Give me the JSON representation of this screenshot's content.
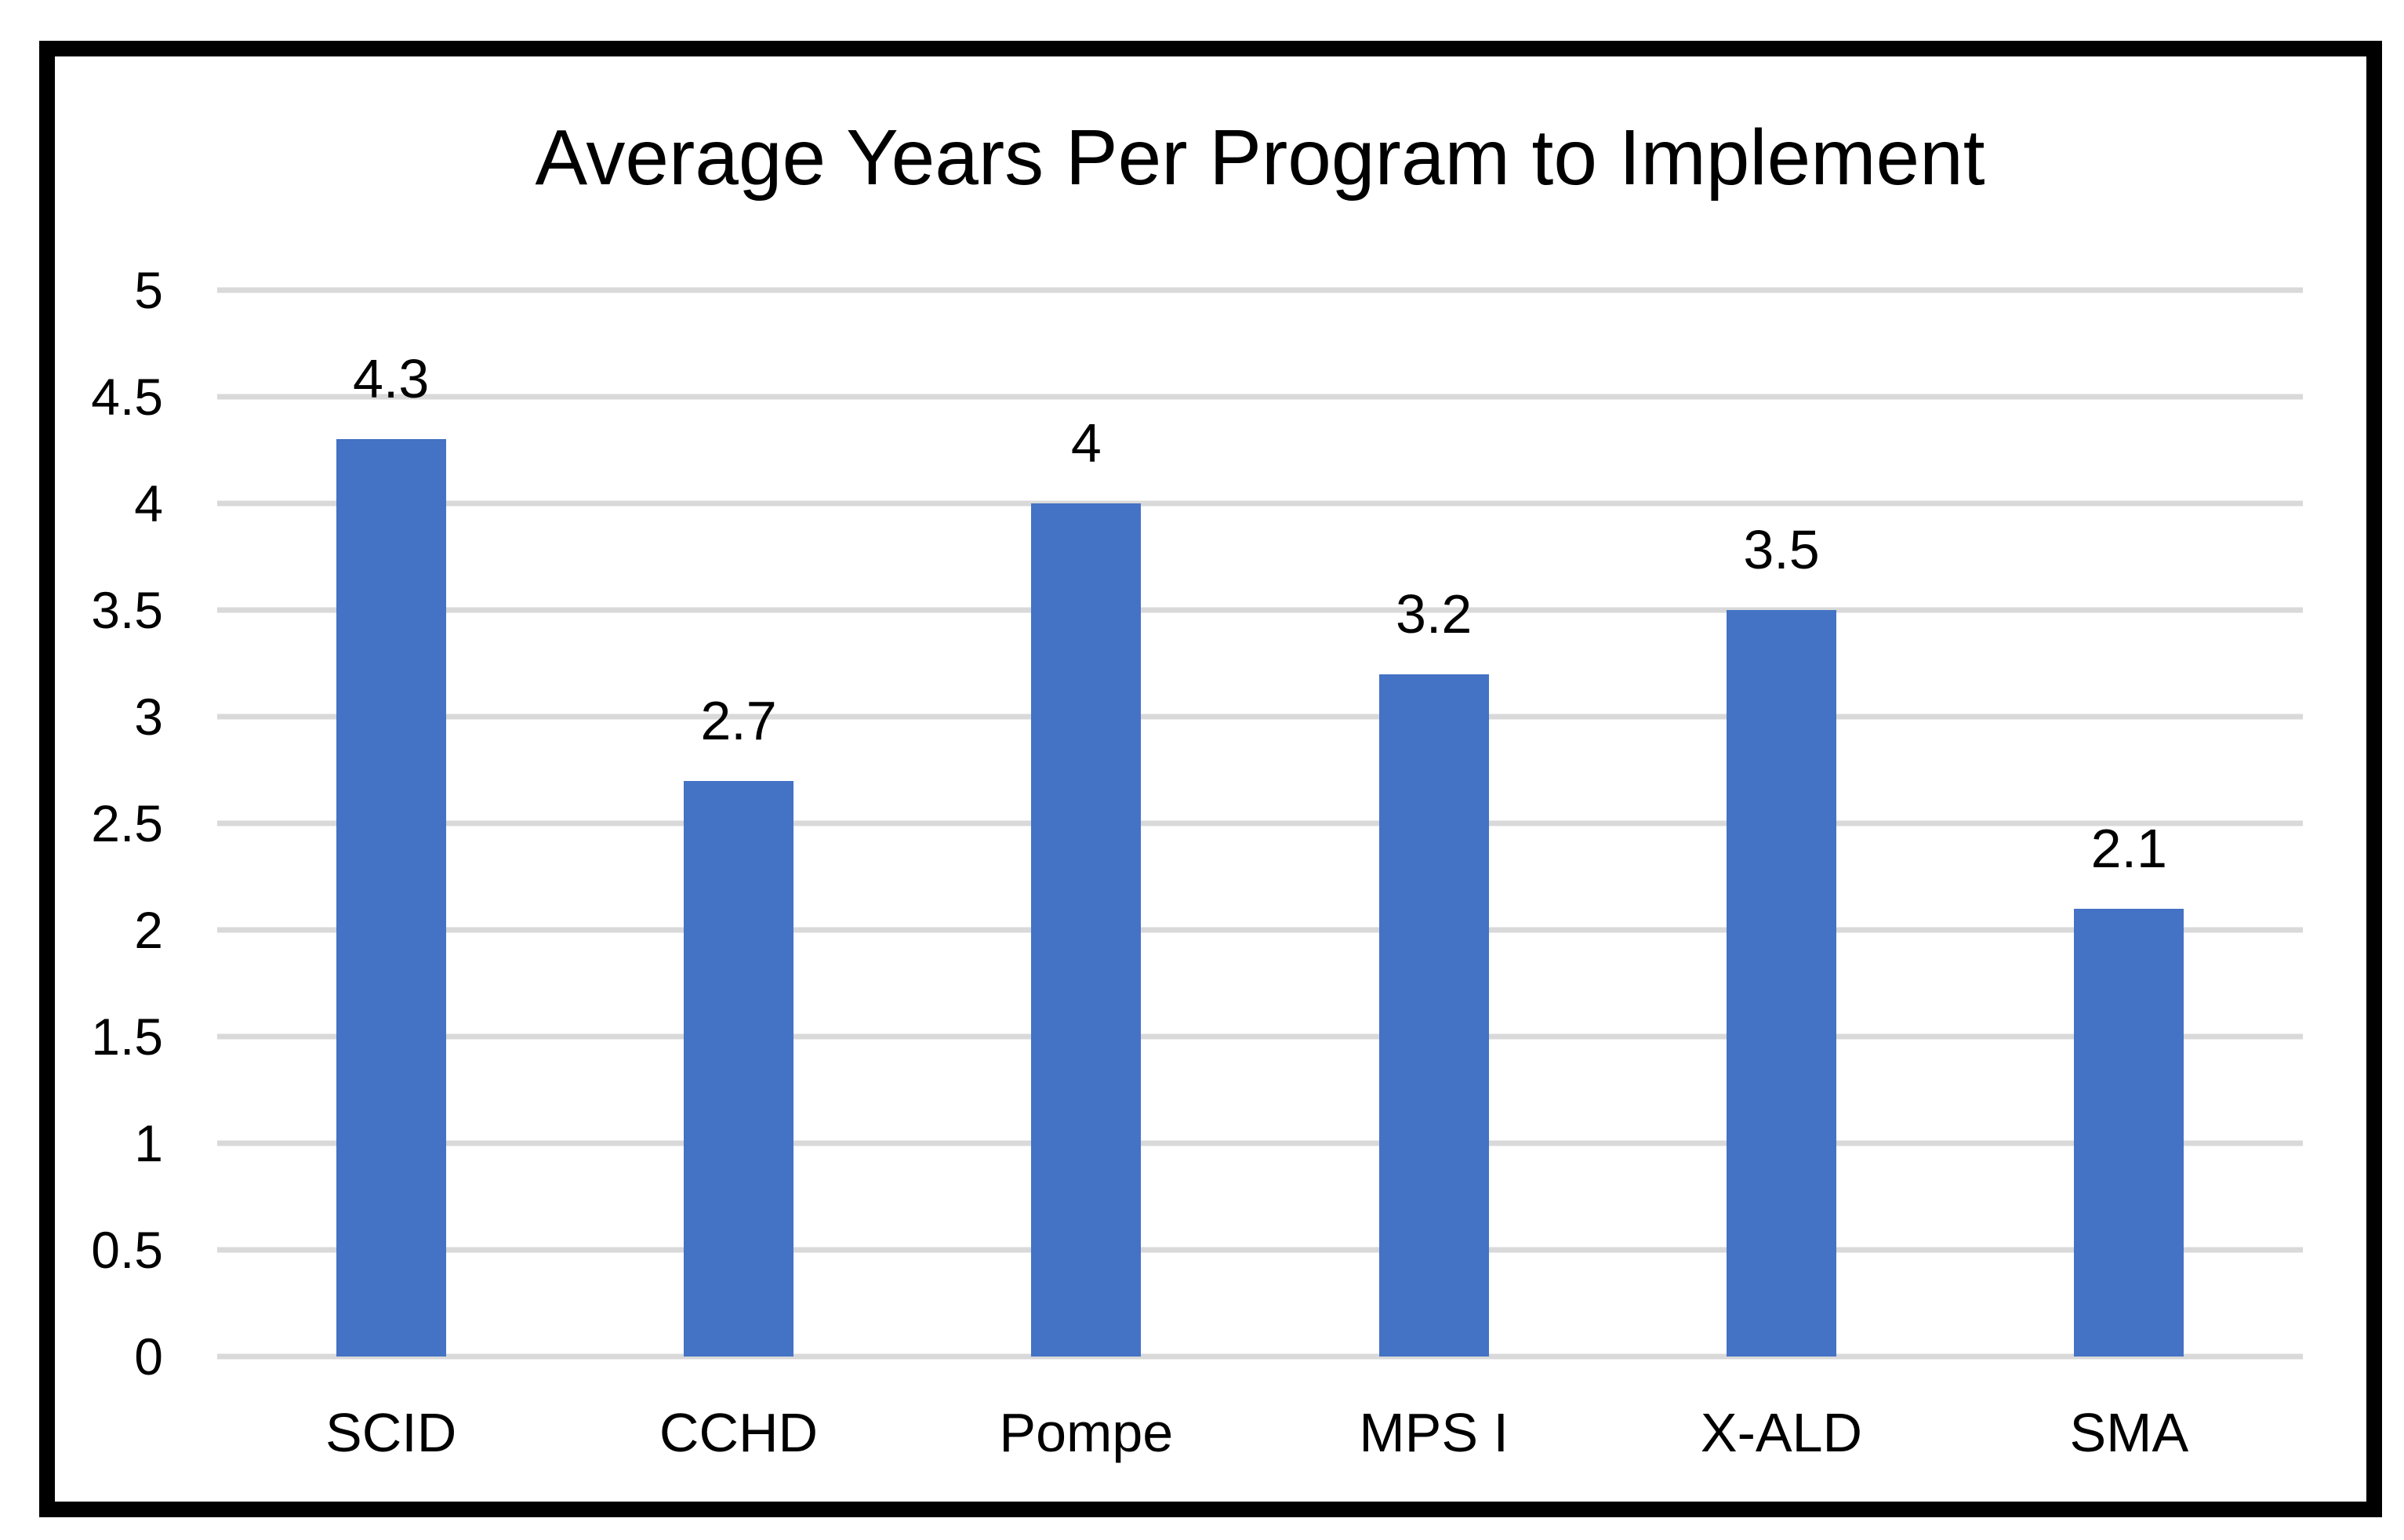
{
  "chart_data": {
    "type": "bar",
    "title": "Average Years Per Program to Implement",
    "categories": [
      "SCID",
      "CCHD",
      "Pompe",
      "MPS I",
      "X-ALD",
      "SMA"
    ],
    "values": [
      4.3,
      2.7,
      4,
      3.2,
      3.5,
      2.1
    ],
    "data_labels": [
      "4.3",
      "2.7",
      "4",
      "3.2",
      "3.5",
      "2.1"
    ],
    "xlabel": "",
    "ylabel": "",
    "ylim": [
      0,
      5
    ],
    "ytick_step": 0.5,
    "yticks": [
      "5",
      "4.5",
      "4",
      "3.5",
      "3",
      "2.5",
      "2",
      "1.5",
      "1",
      "0.5",
      "0"
    ],
    "grid": "horizontal",
    "legend_position": "none",
    "colors": {
      "bar": "#4472C4",
      "gridline": "#D9D9D9",
      "text": "#000000",
      "frame_border": "#000000",
      "background": "#FFFFFF"
    }
  }
}
